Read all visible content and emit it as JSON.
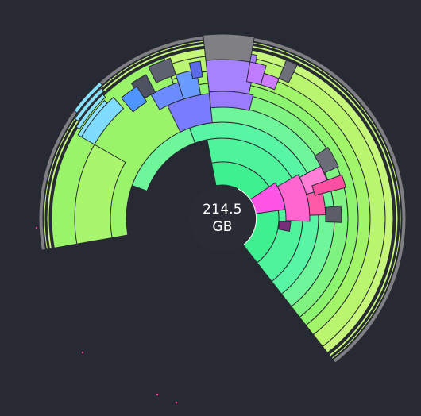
{
  "center": {
    "size_value": "214.5",
    "size_unit": "GB"
  },
  "colors": {
    "background": "#282a33",
    "center_fill": "#2a2c35",
    "center_ring": "#ffffff",
    "free_space": "#7f7f83",
    "tiny_items": "#3d3f47"
  }
}
